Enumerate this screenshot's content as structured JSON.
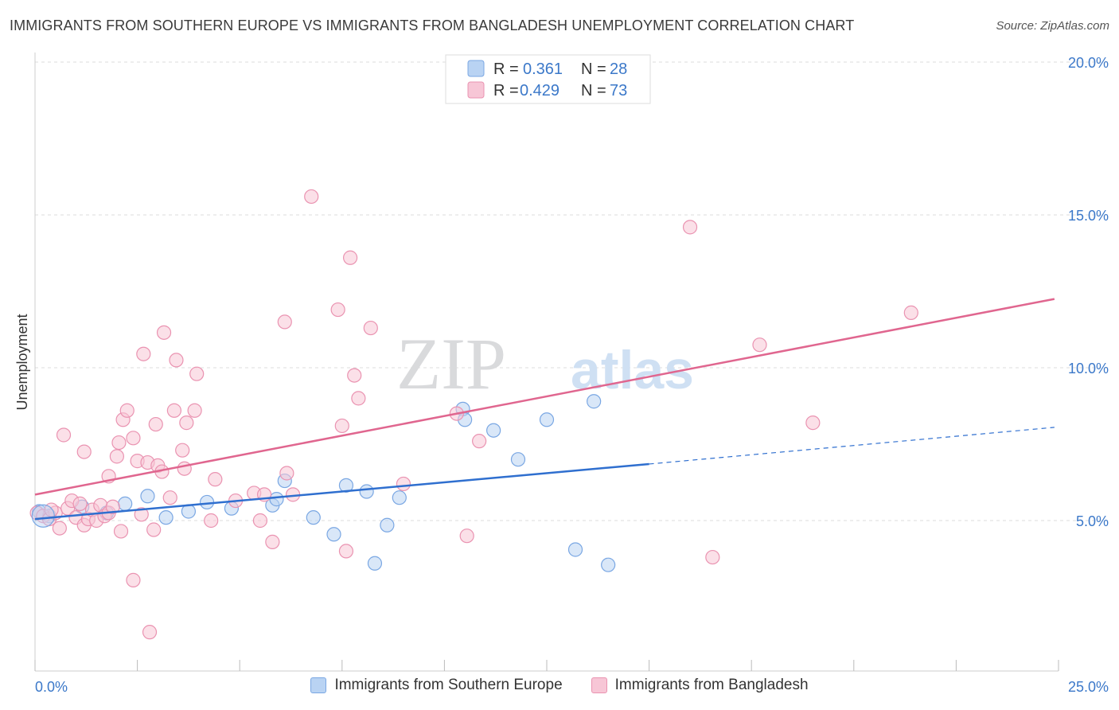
{
  "title": "IMMIGRANTS FROM SOUTHERN EUROPE VS IMMIGRANTS FROM BANGLADESH UNEMPLOYMENT CORRELATION CHART",
  "source": "Source: ZipAtlas.com",
  "watermark": {
    "zip": "ZIP",
    "atlas": "atlas"
  },
  "colors": {
    "blue_fill": "#b9d3f3",
    "blue_stroke": "#7aa7e3",
    "blue_line": "#2f6fcf",
    "pink_fill": "#f7c6d6",
    "pink_stroke": "#ea93b1",
    "pink_line": "#e0668f",
    "tick_text": "#3b78c9",
    "grid": "#dddddd"
  },
  "legend_top": [
    {
      "r_label": "R = ",
      "r_value": "0.361",
      "n_label": "N = ",
      "n_value": "28"
    },
    {
      "r_label": "R = ",
      "r_value": "0.429",
      "n_label": "N = ",
      "n_value": "73"
    }
  ],
  "chart_data": {
    "type": "scatter",
    "title": "IMMIGRANTS FROM SOUTHERN EUROPE VS IMMIGRANTS FROM BANGLADESH UNEMPLOYMENT CORRELATION CHART",
    "xlabel": "",
    "ylabel": "Unemployment",
    "xlim": [
      0,
      25
    ],
    "ylim": [
      0,
      20
    ],
    "x_tick_labels": [
      "0.0%",
      "25.0%"
    ],
    "y_ticks": [
      5,
      10,
      15,
      20
    ],
    "y_tick_labels": [
      "5.0%",
      "10.0%",
      "15.0%",
      "20.0%"
    ],
    "grid": true,
    "legend_position": "top-center and bottom",
    "series": [
      {
        "name": "Immigrants from Southern Europe",
        "color": "#7aa7e3",
        "r": 0.361,
        "n": 28,
        "trend": {
          "x": [
            0,
            15
          ],
          "y": [
            5.05,
            6.85
          ],
          "dashed_extension": {
            "x": [
              15,
              24.9
            ],
            "y": [
              6.85,
              8.05
            ]
          }
        },
        "points": [
          [
            0.1,
            5.3
          ],
          [
            0.35,
            5.15
          ],
          [
            1.15,
            5.45
          ],
          [
            1.75,
            5.25
          ],
          [
            2.2,
            5.55
          ],
          [
            2.75,
            5.8
          ],
          [
            3.2,
            5.1
          ],
          [
            3.75,
            5.3
          ],
          [
            4.2,
            5.6
          ],
          [
            4.8,
            5.4
          ],
          [
            5.8,
            5.5
          ],
          [
            5.9,
            5.7
          ],
          [
            6.1,
            6.3
          ],
          [
            6.8,
            5.1
          ],
          [
            7.3,
            4.55
          ],
          [
            7.6,
            6.15
          ],
          [
            8.1,
            5.95
          ],
          [
            8.3,
            3.6
          ],
          [
            8.6,
            4.85
          ],
          [
            8.9,
            5.75
          ],
          [
            10.45,
            8.65
          ],
          [
            10.5,
            8.3
          ],
          [
            11.2,
            7.95
          ],
          [
            11.8,
            7.0
          ],
          [
            12.5,
            8.3
          ],
          [
            13.2,
            4.05
          ],
          [
            13.65,
            8.9
          ],
          [
            14.0,
            3.55
          ]
        ]
      },
      {
        "name": "Immigrants from Bangladesh",
        "color": "#ea93b1",
        "r": 0.429,
        "n": 73,
        "trend": {
          "x": [
            0,
            24.9
          ],
          "y": [
            5.85,
            12.25
          ]
        },
        "points": [
          [
            0.05,
            5.25
          ],
          [
            0.2,
            5.15
          ],
          [
            0.35,
            5.05
          ],
          [
            0.5,
            5.25
          ],
          [
            0.6,
            4.75
          ],
          [
            0.7,
            7.8
          ],
          [
            0.8,
            5.4
          ],
          [
            0.9,
            5.65
          ],
          [
            1.0,
            5.1
          ],
          [
            1.1,
            5.55
          ],
          [
            1.2,
            4.85
          ],
          [
            1.2,
            7.25
          ],
          [
            1.3,
            5.05
          ],
          [
            1.4,
            5.35
          ],
          [
            1.5,
            5.0
          ],
          [
            1.6,
            5.5
          ],
          [
            1.7,
            5.15
          ],
          [
            1.8,
            5.25
          ],
          [
            1.8,
            6.45
          ],
          [
            1.9,
            5.45
          ],
          [
            2.0,
            7.1
          ],
          [
            2.05,
            7.55
          ],
          [
            2.1,
            4.65
          ],
          [
            2.15,
            8.3
          ],
          [
            2.25,
            8.6
          ],
          [
            2.4,
            3.05
          ],
          [
            2.4,
            7.7
          ],
          [
            2.5,
            6.95
          ],
          [
            2.6,
            5.2
          ],
          [
            2.65,
            10.45
          ],
          [
            2.75,
            6.9
          ],
          [
            2.8,
            1.35
          ],
          [
            2.9,
            4.7
          ],
          [
            2.95,
            8.15
          ],
          [
            3.0,
            6.8
          ],
          [
            3.1,
            6.6
          ],
          [
            3.15,
            11.15
          ],
          [
            3.3,
            5.75
          ],
          [
            3.4,
            8.6
          ],
          [
            3.45,
            10.25
          ],
          [
            3.6,
            7.3
          ],
          [
            3.65,
            6.7
          ],
          [
            3.7,
            8.2
          ],
          [
            3.9,
            8.6
          ],
          [
            3.95,
            9.8
          ],
          [
            4.3,
            5.0
          ],
          [
            4.4,
            6.35
          ],
          [
            4.9,
            5.65
          ],
          [
            5.35,
            5.9
          ],
          [
            5.5,
            5.0
          ],
          [
            5.6,
            5.85
          ],
          [
            5.8,
            4.3
          ],
          [
            6.1,
            11.5
          ],
          [
            6.15,
            6.55
          ],
          [
            6.3,
            5.85
          ],
          [
            6.75,
            15.6
          ],
          [
            7.4,
            11.9
          ],
          [
            7.5,
            8.1
          ],
          [
            7.6,
            4.0
          ],
          [
            7.7,
            13.6
          ],
          [
            7.8,
            9.75
          ],
          [
            7.9,
            9.0
          ],
          [
            8.2,
            11.3
          ],
          [
            9.0,
            6.2
          ],
          [
            10.3,
            8.5
          ],
          [
            10.55,
            4.5
          ],
          [
            10.85,
            7.6
          ],
          [
            16.0,
            14.6
          ],
          [
            16.55,
            3.8
          ],
          [
            17.7,
            10.75
          ],
          [
            19.0,
            8.2
          ],
          [
            21.4,
            11.8
          ],
          [
            0.4,
            5.35
          ]
        ]
      }
    ]
  }
}
